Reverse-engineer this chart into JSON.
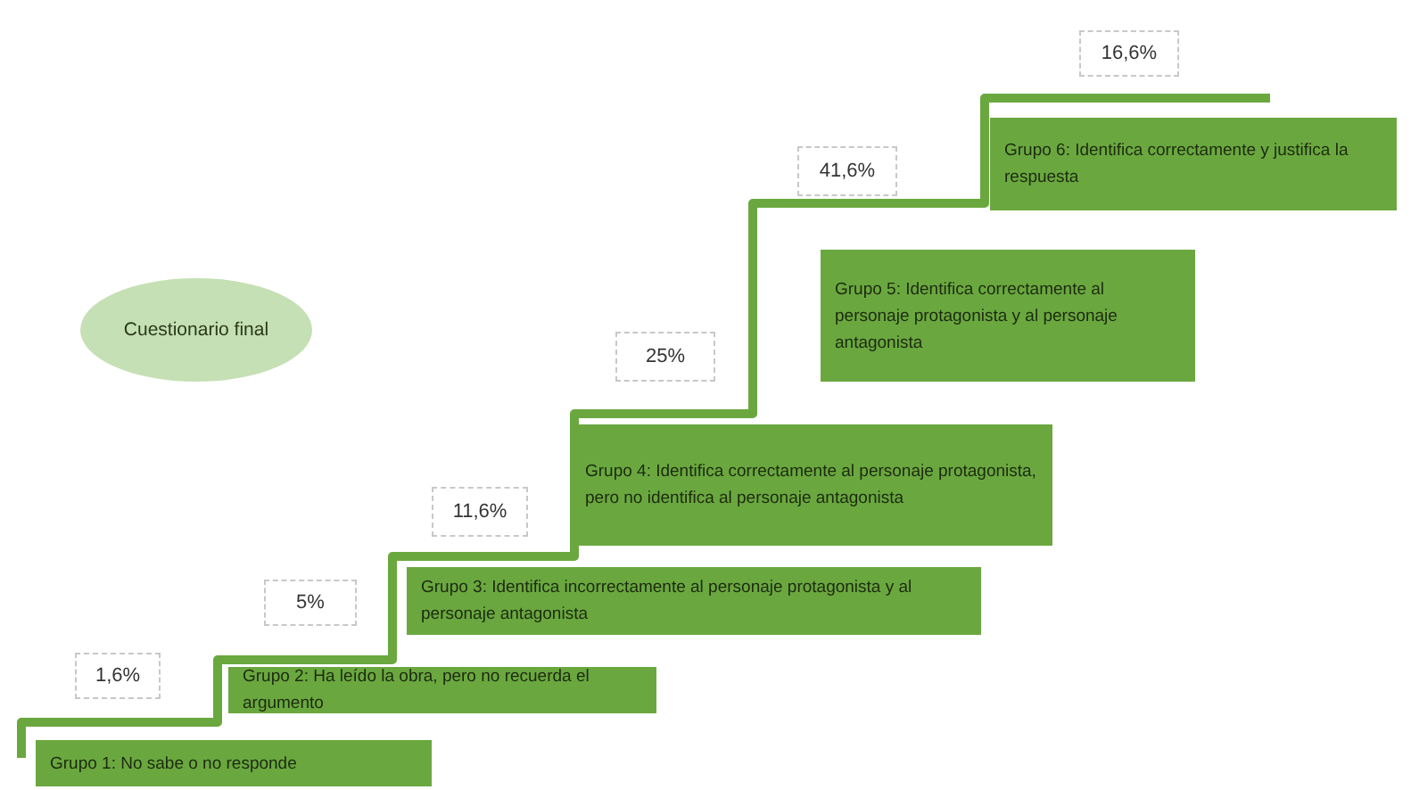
{
  "chart_data": {
    "type": "other",
    "title": "Cuestionario final",
    "categories": [
      "Grupo 1: No sabe o no responde",
      "Grupo 2: Ha leído la obra, pero no recuerda el argumento",
      "Grupo 3: Identifica incorrectamente al personaje protagonista y al personaje antagonista",
      "Grupo 4: Identifica correctamente al personaje protagonista, pero no identifica al personaje antagonista",
      "Grupo 5: Identifica correctamente al personaje protagonista y al personaje antagonista",
      "Grupo 6: Identifica correctamente y justifica la respuesta"
    ],
    "values": [
      1.6,
      5,
      11.6,
      25,
      41.6,
      16.6
    ],
    "value_labels": [
      "1,6%",
      "5%",
      "11,6%",
      "25%",
      "41,6%",
      "16,6%"
    ],
    "color": "#6aa83f"
  }
}
